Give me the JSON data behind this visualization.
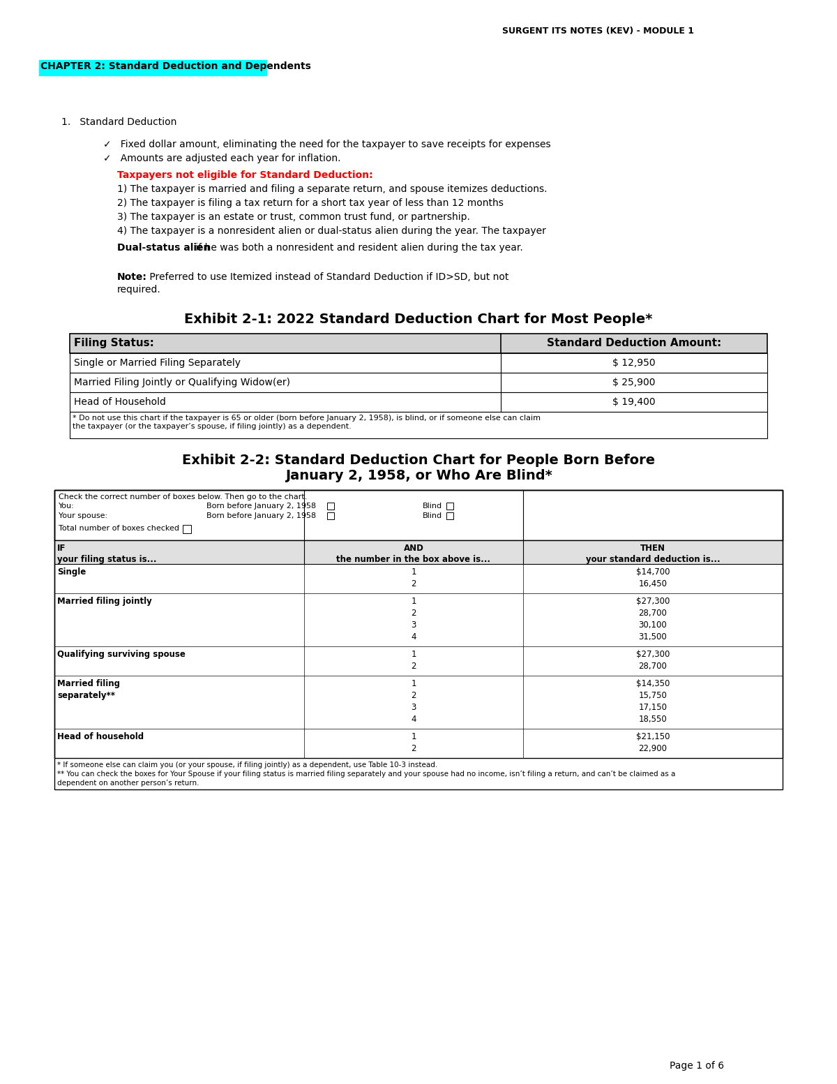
{
  "header": "SURGENT ITS NOTES (KEV) - MODULE 1",
  "chapter_title": "CHAPTER 2: Standard Deduction and Dependents",
  "chapter_bg": "#00FFFF",
  "section1_title": "Standard Deduction",
  "bullets": [
    "Fixed dollar amount, eliminating the need for the taxpayer to save receipts for expenses",
    "Amounts are adjusted each year for inflation."
  ],
  "ineligible_title": "Taxpayers not eligible for Standard Deduction:",
  "ineligible_items": [
    "1) The taxpayer is married and filing a separate return, and spouse itemizes deductions.",
    "2) The taxpayer is filing a tax return for a short tax year of less than 12 months",
    "3) The taxpayer is an estate or trust, common trust fund, or partnership.",
    "4) The taxpayer is a nonresident alien or dual-status alien during the year. The taxpayer"
  ],
  "dual_status_bold": "Dual-status alien",
  "dual_status_rest": " if he was both a nonresident and resident alien during the tax year.",
  "note_bold": "Note:",
  "note_line1": " Preferred to use Itemized instead of Standard Deduction if ID>SD, but not",
  "note_line2": "required.",
  "exhibit1_title": "Exhibit 2-1: 2022 Standard Deduction Chart for Most People*",
  "exhibit1_headers": [
    "Filing Status:",
    "Standard Deduction Amount:"
  ],
  "exhibit1_rows": [
    [
      "Single or Married Filing Separately",
      "$ 12,950"
    ],
    [
      "Married Filing Jointly or Qualifying Widow(er)",
      "$ 25,900"
    ],
    [
      "Head of Household",
      "$ 19,400"
    ]
  ],
  "exhibit1_footnote": "* Do not use this chart if the taxpayer is 65 or older (born before January 2, 1958), is blind, or if someone else can claim\nthe taxpayer (or the taxpayer’s spouse, if filing jointly) as a dependent.",
  "exhibit2_title_line1": "Exhibit 2-2: Standard Deduction Chart for People Born Before",
  "exhibit2_title_line2": "January 2, 1958, or Who Are Blind*",
  "exhibit2_check_text": "Check the correct number of boxes below. Then go to the chart.",
  "exhibit2_col_headers": [
    "IF\nyour filing status is...",
    "AND\nthe number in the box above is...",
    "THEN\nyour standard deduction is..."
  ],
  "exhibit2_rows": [
    [
      "Single",
      "1\n2",
      "$14,700\n16,450"
    ],
    [
      "Married filing jointly",
      "1\n2\n3\n4",
      "$27,300\n28,700\n30,100\n31,500"
    ],
    [
      "Qualifying surviving spouse",
      "1\n2",
      "$27,300\n28,700"
    ],
    [
      "Married filing\nseparately**",
      "1\n2\n3\n4",
      "$14,350\n15,750\n17,150\n18,550"
    ],
    [
      "Head of household",
      "1\n2",
      "$21,150\n22,900"
    ]
  ],
  "exhibit2_footnote1": "* If someone else can claim you (or your spouse, if filing jointly) as a dependent, use Table 10-3 instead.",
  "exhibit2_footnote2": "** You can check the boxes for Your Spouse if your filing status is married filing separately and your spouse had no income, isn’t filing a return, and can’t be claimed as a",
  "exhibit2_footnote3": "dependent on another person’s return.",
  "page_footer": "Page 1 of 6"
}
